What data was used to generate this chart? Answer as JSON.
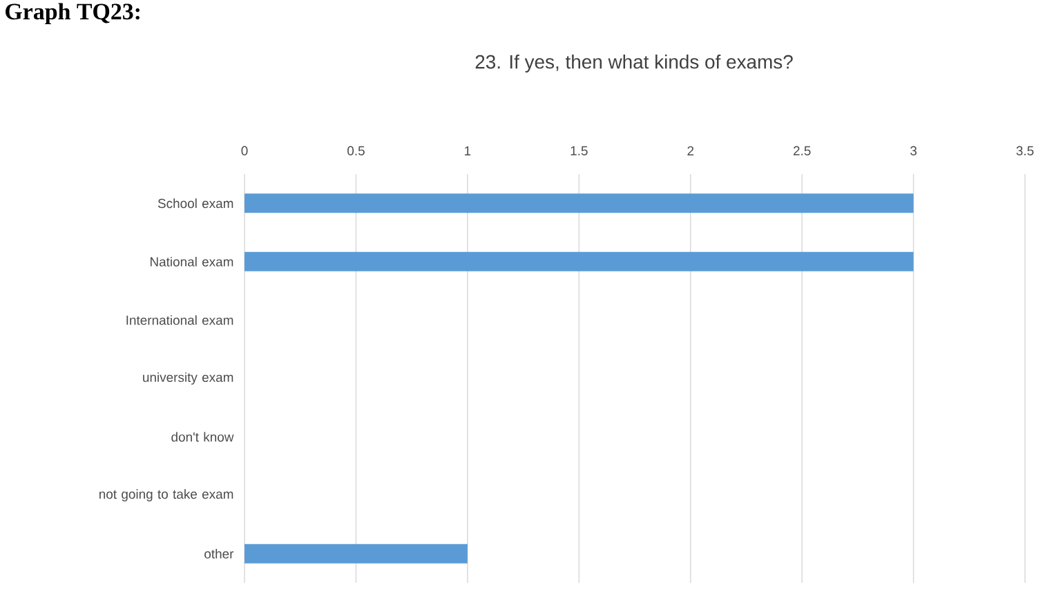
{
  "chart_data": {
    "type": "bar",
    "orientation": "horizontal",
    "title": "23. If yes, then what kinds of exams?",
    "categories": [
      "School exam",
      "National exam",
      "International exam",
      "university exam",
      "don't know",
      "not going to take exam",
      "other"
    ],
    "values": [
      3,
      3,
      0,
      0,
      0,
      0,
      1
    ],
    "color": "#5b9bd5",
    "xlim": [
      0,
      3.5
    ],
    "xticks": [
      0,
      0.5,
      1,
      1.5,
      2,
      2.5,
      3,
      3.5
    ],
    "grid": "x",
    "annotations": [
      "Graph TQ23:"
    ]
  }
}
